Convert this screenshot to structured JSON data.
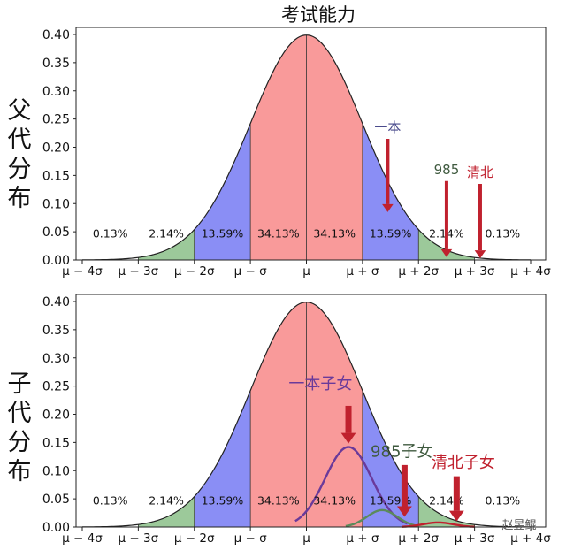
{
  "chart_data": [
    {
      "type": "area",
      "title": "考试能力",
      "ylabel": "父代分布",
      "xlim": [
        -4,
        4
      ],
      "ylim": [
        0,
        0.4
      ],
      "yticks": [
        "0.00",
        "0.05",
        "0.10",
        "0.15",
        "0.20",
        "0.25",
        "0.30",
        "0.35",
        "0.40"
      ],
      "xticks": [
        {
          "v": -4,
          "label": "μ − 4σ"
        },
        {
          "v": -3,
          "label": "μ − 3σ"
        },
        {
          "v": -2,
          "label": "μ − 2σ"
        },
        {
          "v": -1,
          "label": "μ − σ"
        },
        {
          "v": 0,
          "label": "μ"
        },
        {
          "v": 1,
          "label": "μ + σ"
        },
        {
          "v": 2,
          "label": "μ + 2σ"
        },
        {
          "v": 3,
          "label": "μ + 3σ"
        },
        {
          "v": 4,
          "label": "μ + 4σ"
        }
      ],
      "regions": [
        {
          "from": -4,
          "to": -3,
          "label": "0.13%",
          "color": "#ffffff"
        },
        {
          "from": -3,
          "to": -2,
          "label": "2.14%",
          "color": "#9cc99a"
        },
        {
          "from": -2,
          "to": -1,
          "label": "13.59%",
          "color": "#8a8ef5"
        },
        {
          "from": -1,
          "to": 0,
          "label": "34.13%",
          "color": "#f99a9a"
        },
        {
          "from": 0,
          "to": 1,
          "label": "34.13%",
          "color": "#f99a9a"
        },
        {
          "from": 1,
          "to": 2,
          "label": "13.59%",
          "color": "#8a8ef5"
        },
        {
          "from": 2,
          "to": 3,
          "label": "2.14%",
          "color": "#9cc99a"
        },
        {
          "from": 3,
          "to": 4,
          "label": "0.13%",
          "color": "#ffffff"
        }
      ],
      "annotations": [
        {
          "text": "一本",
          "x": 1.45,
          "y_top": 0.215,
          "y_tip": 0.085,
          "color": "#4a4b8c",
          "arrow": "#c0212e"
        },
        {
          "text": "985",
          "x": 2.5,
          "y_top": 0.14,
          "y_tip": 0.005,
          "color": "#3f5a3f",
          "arrow": "#c0212e"
        },
        {
          "text": "清北",
          "x": 3.1,
          "y_top": 0.135,
          "y_tip": 0.003,
          "color": "#c0212e",
          "arrow": "#c0212e"
        }
      ]
    },
    {
      "type": "area",
      "ylabel": "子代分布",
      "xlim": [
        -4,
        4
      ],
      "ylim": [
        0,
        0.4
      ],
      "yticks": [
        "0.00",
        "0.05",
        "0.10",
        "0.15",
        "0.20",
        "0.25",
        "0.30",
        "0.35",
        "0.40"
      ],
      "xticks": [
        {
          "v": -4,
          "label": "μ − 4σ"
        },
        {
          "v": -3,
          "label": "μ − 3σ"
        },
        {
          "v": -2,
          "label": "μ − 2σ"
        },
        {
          "v": -1,
          "label": "μ − σ"
        },
        {
          "v": 0,
          "label": "μ"
        },
        {
          "v": 1,
          "label": "μ + σ"
        },
        {
          "v": 2,
          "label": "μ + 2σ"
        },
        {
          "v": 3,
          "label": "μ + 3σ"
        },
        {
          "v": 4,
          "label": "μ + 4σ"
        }
      ],
      "regions": [
        {
          "from": -4,
          "to": -3,
          "label": "0.13%",
          "color": "#ffffff"
        },
        {
          "from": -3,
          "to": -2,
          "label": "2.14%",
          "color": "#9cc99a"
        },
        {
          "from": -2,
          "to": -1,
          "label": "13.59%",
          "color": "#8a8ef5"
        },
        {
          "from": -1,
          "to": 0,
          "label": "34.13%",
          "color": "#f99a9a"
        },
        {
          "from": 0,
          "to": 1,
          "label": "34.13%",
          "color": "#f99a9a"
        },
        {
          "from": 1,
          "to": 2,
          "label": "13.59%",
          "color": "#8a8ef5"
        },
        {
          "from": 2,
          "to": 3,
          "label": "2.14%",
          "color": "#9cc99a"
        },
        {
          "from": 3,
          "to": 4,
          "label": "0.13%",
          "color": "#ffffff"
        }
      ],
      "subcurves": [
        {
          "name": "一本子女",
          "from": -0.2,
          "to": 1.8,
          "peak_x": 0.75,
          "peak_y": 0.142,
          "color": "#6a3a9a"
        },
        {
          "name": "985子女",
          "from": 0.7,
          "to": 2.0,
          "peak_x": 1.35,
          "peak_y": 0.03,
          "color": "#5b8a5b"
        },
        {
          "name": "清北子女",
          "from": 1.7,
          "to": 3.0,
          "peak_x": 2.35,
          "peak_y": 0.008,
          "color": "#c0212e"
        }
      ],
      "annotations": [
        {
          "text": "一本子女",
          "x": 0.75,
          "y_top": 0.215,
          "y_tip": 0.148,
          "color": "#6a3a9a",
          "arrow": "#c0212e",
          "label_x": 0.25,
          "label_y": 0.245
        },
        {
          "text": "985子女",
          "x": 1.75,
          "y_top": 0.11,
          "y_tip": 0.018,
          "color": "#3f5a3f",
          "arrow": "#c0212e",
          "label_x": 1.7,
          "label_y": 0.125
        },
        {
          "text": "清北子女",
          "x": 2.68,
          "y_top": 0.09,
          "y_tip": 0.01,
          "color": "#c0212e",
          "arrow": "#c0212e",
          "label_x": 2.8,
          "label_y": 0.105
        }
      ]
    }
  ],
  "watermark": "赵昱鲲"
}
